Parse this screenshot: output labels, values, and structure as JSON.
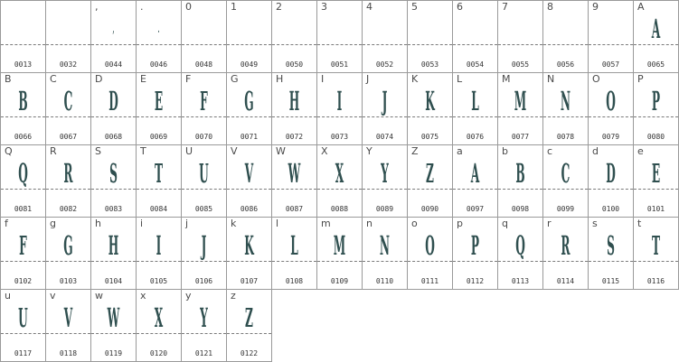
{
  "glyph_color": "#2f4f4f",
  "cells": [
    {
      "ref": "",
      "glyph": "",
      "code": "0013"
    },
    {
      "ref": "",
      "glyph": "",
      "code": "0032"
    },
    {
      "ref": ",",
      "glyph": ",",
      "code": "0044"
    },
    {
      "ref": ".",
      "glyph": ".",
      "code": "0046"
    },
    {
      "ref": "0",
      "glyph": "",
      "code": "0048"
    },
    {
      "ref": "1",
      "glyph": "",
      "code": "0049"
    },
    {
      "ref": "2",
      "glyph": "",
      "code": "0050"
    },
    {
      "ref": "3",
      "glyph": "",
      "code": "0051"
    },
    {
      "ref": "4",
      "glyph": "",
      "code": "0052"
    },
    {
      "ref": "5",
      "glyph": "",
      "code": "0053"
    },
    {
      "ref": "6",
      "glyph": "",
      "code": "0054"
    },
    {
      "ref": "7",
      "glyph": "",
      "code": "0055"
    },
    {
      "ref": "8",
      "glyph": "",
      "code": "0056"
    },
    {
      "ref": "9",
      "glyph": "",
      "code": "0057"
    },
    {
      "ref": "A",
      "glyph": "A",
      "code": "0065"
    },
    {
      "ref": "B",
      "glyph": "B",
      "code": "0066"
    },
    {
      "ref": "C",
      "glyph": "C",
      "code": "0067"
    },
    {
      "ref": "D",
      "glyph": "D",
      "code": "0068"
    },
    {
      "ref": "E",
      "glyph": "E",
      "code": "0069"
    },
    {
      "ref": "F",
      "glyph": "F",
      "code": "0070"
    },
    {
      "ref": "G",
      "glyph": "G",
      "code": "0071"
    },
    {
      "ref": "H",
      "glyph": "H",
      "code": "0072"
    },
    {
      "ref": "I",
      "glyph": "I",
      "code": "0073"
    },
    {
      "ref": "J",
      "glyph": "J",
      "code": "0074"
    },
    {
      "ref": "K",
      "glyph": "K",
      "code": "0075"
    },
    {
      "ref": "L",
      "glyph": "L",
      "code": "0076"
    },
    {
      "ref": "M",
      "glyph": "M",
      "code": "0077"
    },
    {
      "ref": "N",
      "glyph": "N",
      "code": "0078"
    },
    {
      "ref": "O",
      "glyph": "O",
      "code": "0079"
    },
    {
      "ref": "P",
      "glyph": "P",
      "code": "0080"
    },
    {
      "ref": "Q",
      "glyph": "Q",
      "code": "0081"
    },
    {
      "ref": "R",
      "glyph": "R",
      "code": "0082"
    },
    {
      "ref": "S",
      "glyph": "S",
      "code": "0083"
    },
    {
      "ref": "T",
      "glyph": "T",
      "code": "0084"
    },
    {
      "ref": "U",
      "glyph": "U",
      "code": "0085"
    },
    {
      "ref": "V",
      "glyph": "V",
      "code": "0086"
    },
    {
      "ref": "W",
      "glyph": "W",
      "code": "0087"
    },
    {
      "ref": "X",
      "glyph": "X",
      "code": "0088"
    },
    {
      "ref": "Y",
      "glyph": "Y",
      "code": "0089"
    },
    {
      "ref": "Z",
      "glyph": "Z",
      "code": "0090"
    },
    {
      "ref": "a",
      "glyph": "A",
      "code": "0097"
    },
    {
      "ref": "b",
      "glyph": "B",
      "code": "0098"
    },
    {
      "ref": "c",
      "glyph": "C",
      "code": "0099"
    },
    {
      "ref": "d",
      "glyph": "D",
      "code": "0100"
    },
    {
      "ref": "e",
      "glyph": "E",
      "code": "0101"
    },
    {
      "ref": "f",
      "glyph": "F",
      "code": "0102"
    },
    {
      "ref": "g",
      "glyph": "G",
      "code": "0103"
    },
    {
      "ref": "h",
      "glyph": "H",
      "code": "0104"
    },
    {
      "ref": "i",
      "glyph": "I",
      "code": "0105"
    },
    {
      "ref": "j",
      "glyph": "J",
      "code": "0106"
    },
    {
      "ref": "k",
      "glyph": "K",
      "code": "0107"
    },
    {
      "ref": "l",
      "glyph": "L",
      "code": "0108"
    },
    {
      "ref": "m",
      "glyph": "M",
      "code": "0109"
    },
    {
      "ref": "n",
      "glyph": "N",
      "code": "0110"
    },
    {
      "ref": "o",
      "glyph": "O",
      "code": "0111"
    },
    {
      "ref": "p",
      "glyph": "P",
      "code": "0112"
    },
    {
      "ref": "q",
      "glyph": "Q",
      "code": "0113"
    },
    {
      "ref": "r",
      "glyph": "R",
      "code": "0114"
    },
    {
      "ref": "s",
      "glyph": "S",
      "code": "0115"
    },
    {
      "ref": "t",
      "glyph": "T",
      "code": "0116"
    },
    {
      "ref": "u",
      "glyph": "U",
      "code": "0117"
    },
    {
      "ref": "v",
      "glyph": "V",
      "code": "0118"
    },
    {
      "ref": "w",
      "glyph": "W",
      "code": "0119"
    },
    {
      "ref": "x",
      "glyph": "X",
      "code": "0120"
    },
    {
      "ref": "y",
      "glyph": "Y",
      "code": "0121"
    },
    {
      "ref": "z",
      "glyph": "Z",
      "code": "0122"
    }
  ]
}
